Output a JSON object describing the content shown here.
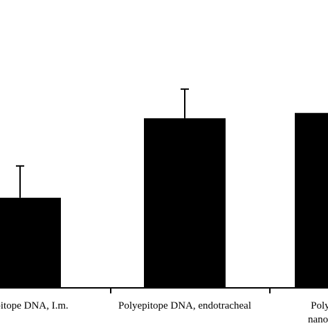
{
  "chart_data": {
    "type": "bar",
    "categories": [
      "Polyepitope DNA, I.m.",
      "Polyepitope DNA, endotracheal",
      "Polyepitope DNA, nanoparticles"
    ],
    "category_label_lines": [
      [
        "Polyepitope DNA, I.m."
      ],
      [
        "Polyepitope DNA, endotracheal"
      ],
      [
        "Polyepitope",
        "nanoparticles"
      ]
    ],
    "values": [
      34,
      64,
      66
    ],
    "error_upper": [
      12,
      11,
      null
    ],
    "ylim": [
      0,
      100
    ],
    "title": "",
    "xlabel": "",
    "ylabel": "",
    "bar_color": "#000000",
    "axis_color": "#000000",
    "grid": false,
    "legend": "none"
  }
}
